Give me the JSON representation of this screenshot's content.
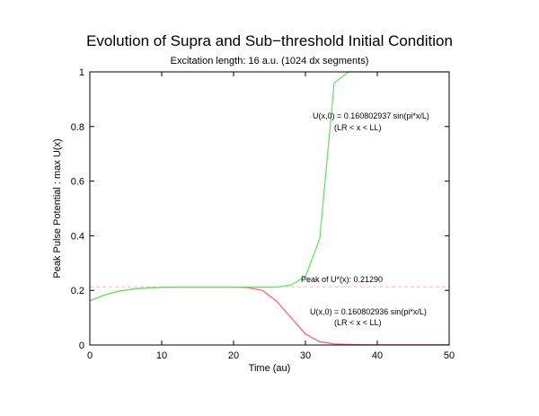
{
  "chart_data": {
    "type": "line",
    "title": "Evolution of Supra and Sub−threshold Initial Condition",
    "subtitle": "Excitation length: 16 a.u. (1024 dx segments)",
    "xlabel": "Time (au)",
    "ylabel": "Peak Pulse Potential : max U(x)",
    "xlim": [
      0,
      50
    ],
    "ylim": [
      0,
      1
    ],
    "xticks": [
      0,
      10,
      20,
      30,
      40,
      50
    ],
    "yticks": [
      0,
      0.2,
      0.4,
      0.6,
      0.8,
      1
    ],
    "ytick_labels": [
      "0",
      "0.2",
      "0.4",
      "0.6",
      "0.8",
      "1"
    ],
    "grid": false,
    "series": [
      {
        "color": "#ff5a5a",
        "x": [
          0,
          2,
          4,
          6,
          8,
          10,
          12,
          14,
          16,
          18,
          20,
          22,
          24,
          26,
          28,
          30,
          32,
          34,
          36,
          38,
          40,
          42,
          44,
          46,
          48,
          50
        ],
        "y": [
          0.162,
          0.183,
          0.197,
          0.205,
          0.209,
          0.211,
          0.212,
          0.212,
          0.212,
          0.212,
          0.212,
          0.21,
          0.2,
          0.16,
          0.1,
          0.04,
          0.012,
          0.004,
          0.002,
          0.001,
          0.001,
          0.001,
          0.001,
          0.001,
          0.001,
          0.001
        ]
      },
      {
        "color": "#5de35d",
        "x": [
          0,
          2,
          4,
          6,
          8,
          10,
          12,
          14,
          16,
          18,
          20,
          22,
          24,
          26,
          28,
          30,
          32,
          34,
          36,
          38,
          40,
          42,
          44,
          46,
          48,
          50
        ],
        "y": [
          0.162,
          0.183,
          0.197,
          0.205,
          0.209,
          0.211,
          0.212,
          0.212,
          0.212,
          0.212,
          0.212,
          0.212,
          0.212,
          0.212,
          0.22,
          0.25,
          0.39,
          0.96,
          1.0,
          1.0,
          1.0,
          1.0,
          1.0,
          1.0,
          1.0,
          1.0
        ]
      }
    ],
    "reference_line": {
      "y": 0.2129,
      "color": "#ffb3c8",
      "label": "Peak of U*(x): 0.21290"
    },
    "annotations": [
      {
        "line1": "U(x,0) = 0.160802937 sin(pi*x/L)",
        "line2": "(LR < x < LL)"
      },
      {
        "line1": "U(x,0) = 0.160802936 sin(pi*x/L)",
        "line2": "(LR < x < LL)"
      }
    ]
  }
}
